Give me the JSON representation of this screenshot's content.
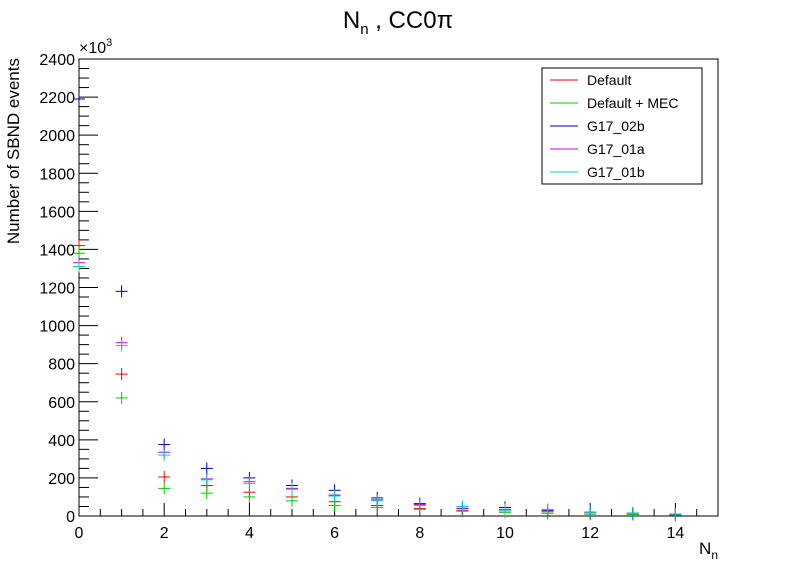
{
  "chart_data": {
    "type": "scatter",
    "title_main": "N",
    "title_sub": "n",
    "title_rest": " , CC0π",
    "xlabel_main": "N",
    "xlabel_sub": "n",
    "ylabel": "Number of SBND events",
    "y_multiplier_base": "×10",
    "y_multiplier_exp": "3",
    "xlim": [
      0,
      15
    ],
    "ylim": [
      0,
      2400
    ],
    "x_ticks": [
      "0",
      "2",
      "4",
      "6",
      "8",
      "10",
      "12",
      "14"
    ],
    "y_ticks": [
      "0",
      "200",
      "400",
      "600",
      "800",
      "1000",
      "1200",
      "1400",
      "1600",
      "1800",
      "2000",
      "2200",
      "2400"
    ],
    "legend_position": "top-right",
    "x": [
      0,
      1,
      2,
      3,
      4,
      5,
      6,
      7,
      8,
      9,
      10,
      11,
      12,
      13,
      14
    ],
    "series": [
      {
        "name": "Default",
        "color": "#ff0000",
        "values": [
          1420,
          745,
          205,
          160,
          125,
          100,
          75,
          55,
          40,
          30,
          20,
          15,
          10,
          8,
          5
        ]
      },
      {
        "name": "Default + MEC",
        "color": "#00cc00",
        "values": [
          1380,
          620,
          145,
          120,
          100,
          80,
          55,
          45,
          35,
          25,
          20,
          15,
          10,
          8,
          5
        ]
      },
      {
        "name": "G17_02b",
        "color": "#000099",
        "values": [
          2190,
          1180,
          375,
          250,
          200,
          160,
          135,
          95,
          65,
          40,
          45,
          30,
          20,
          15,
          10
        ]
      },
      {
        "name": "G17_01a",
        "color": "#cc00cc",
        "values": [
          1330,
          910,
          335,
          195,
          180,
          145,
          110,
          85,
          60,
          40,
          35,
          25,
          20,
          15,
          10
        ]
      },
      {
        "name": "G17_01b",
        "color": "#00cccc",
        "values": [
          1310,
          895,
          320,
          190,
          170,
          140,
          105,
          80,
          55,
          50,
          30,
          35,
          20,
          15,
          10
        ]
      }
    ]
  }
}
